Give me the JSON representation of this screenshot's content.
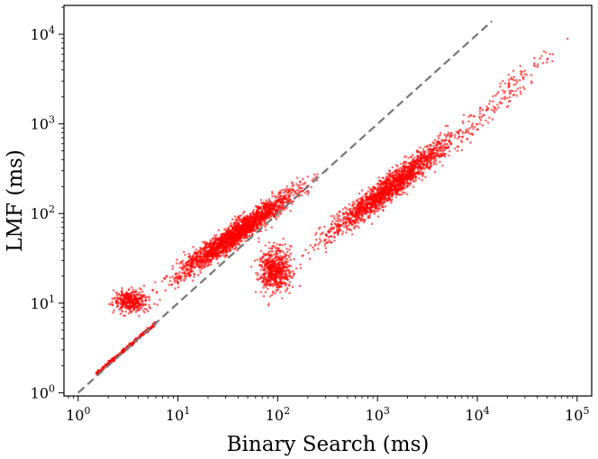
{
  "chart_data": {
    "type": "scatter",
    "title": "",
    "xlabel": "Binary Search (ms)",
    "ylabel": "LMF (ms)",
    "x_scale": "log",
    "y_scale": "log",
    "xlim": [
      0.72,
      140000
    ],
    "ylim": [
      0.92,
      21000
    ],
    "grid": false,
    "legend": "none",
    "x_ticks": [
      {
        "base": "10",
        "exp": "0",
        "value": 1
      },
      {
        "base": "10",
        "exp": "1",
        "value": 10
      },
      {
        "base": "10",
        "exp": "2",
        "value": 100
      },
      {
        "base": "10",
        "exp": "3",
        "value": 1000
      },
      {
        "base": "10",
        "exp": "4",
        "value": 10000
      },
      {
        "base": "10",
        "exp": "5",
        "value": 100000
      }
    ],
    "y_ticks": [
      {
        "base": "10",
        "exp": "0",
        "value": 1
      },
      {
        "base": "10",
        "exp": "1",
        "value": 10
      },
      {
        "base": "10",
        "exp": "2",
        "value": 100
      },
      {
        "base": "10",
        "exp": "3",
        "value": 1000
      },
      {
        "base": "10",
        "exp": "4",
        "value": 10000
      }
    ],
    "reference_line": {
      "style": "dashed",
      "color": "#777777",
      "from": [
        1,
        1
      ],
      "to": [
        14000,
        14000
      ]
    },
    "series": [
      {
        "color": "#ff0000",
        "clusters": [
          {
            "x_range": [
              1.5,
              6
            ],
            "y_range": [
              1.6,
              6
            ],
            "relation": "diagonal",
            "count": 260
          },
          {
            "x_range": [
              1.8,
              6.5
            ],
            "y_range": [
              6.5,
              17
            ],
            "relation": "independent",
            "count": 380
          },
          {
            "x_range": [
              5,
              300
            ],
            "y_range": [
              12,
              300
            ],
            "relation": "correlated",
            "count": 2200
          },
          {
            "x_range": [
              50,
              180
            ],
            "y_range": [
              9,
              60
            ],
            "relation": "independent",
            "count": 600
          },
          {
            "x_range": [
              150,
              12000
            ],
            "y_range": [
              30,
              1300
            ],
            "relation": "correlated",
            "count": 1800
          },
          {
            "x_range": [
              3000,
              100000
            ],
            "y_range": [
              300,
              13000
            ],
            "relation": "correlated",
            "count": 160
          }
        ]
      }
    ]
  }
}
